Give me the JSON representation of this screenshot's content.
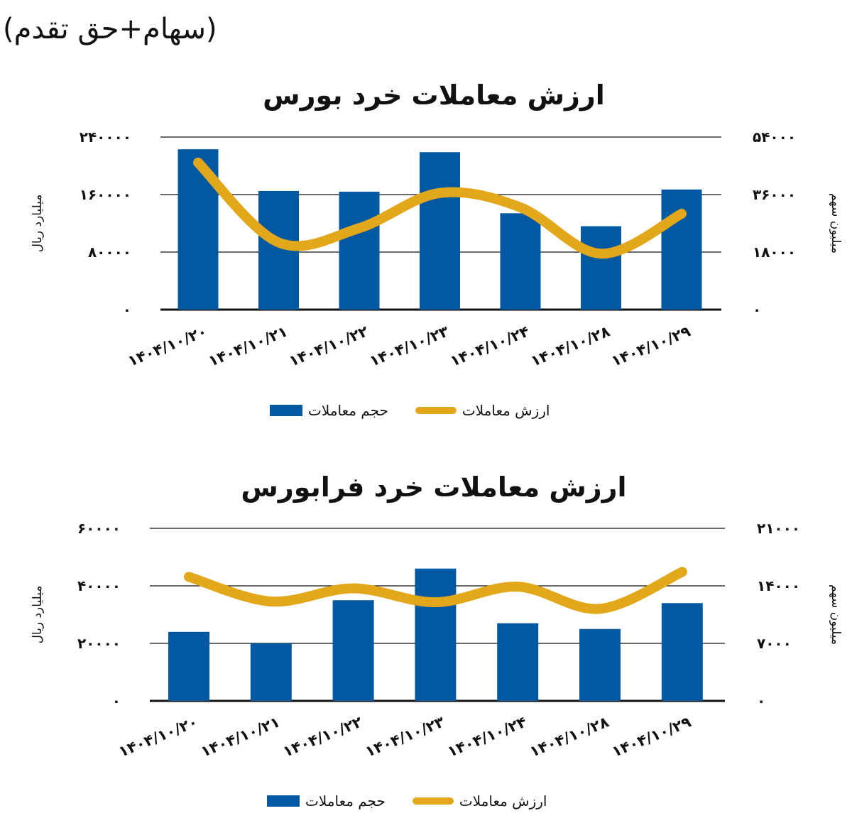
{
  "header": {
    "title": "(سهام+حق تقدم)"
  },
  "colors": {
    "bar": "#0259a1",
    "line": "#e3a71b",
    "grid": "#111111",
    "text": "#111111"
  },
  "legend": {
    "line_label": "ارزش معاملات",
    "bar_label": "حجم معاملات"
  },
  "charts": [
    {
      "title": "ارزش معاملات خرد بورس",
      "left_axis_title": "میلیارد ریال",
      "right_axis_title": "میلیون سهم",
      "left_ticks": [
        "۲۴۰۰۰۰",
        "۱۶۰۰۰۰",
        "۸۰۰۰۰",
        "۰"
      ],
      "right_ticks": [
        "۵۴۰۰۰",
        "۳۶۰۰۰",
        "۱۸۰۰۰",
        "۰"
      ],
      "x_labels": [
        "۱۴۰۴/۱۰/۲۰",
        "۱۴۰۴/۱۰/۲۱",
        "۱۴۰۴/۱۰/۲۲",
        "۱۴۰۴/۱۰/۲۳",
        "۱۴۰۴/۱۰/۲۴",
        "۱۴۰۴/۱۰/۲۸",
        "۱۴۰۴/۱۰/۲۹"
      ]
    },
    {
      "title": "ارزش معاملات خرد فرابورس",
      "left_axis_title": "میلیارد ریال",
      "right_axis_title": "میلیون سهم",
      "left_ticks": [
        "۶۰۰۰۰",
        "۴۰۰۰۰",
        "۲۰۰۰۰",
        "۰"
      ],
      "right_ticks": [
        "۲۱۰۰۰",
        "۱۴۰۰۰",
        "۷۰۰۰",
        "۰"
      ],
      "x_labels": [
        "۱۴۰۴/۱۰/۲۰",
        "۱۴۰۴/۱۰/۲۱",
        "۱۴۰۴/۱۰/۲۲",
        "۱۴۰۴/۱۰/۲۳",
        "۱۴۰۴/۱۰/۲۴",
        "۱۴۰۴/۱۰/۲۸",
        "۱۴۰۴/۱۰/۲۹"
      ]
    }
  ],
  "chart_data": [
    {
      "type": "bar",
      "title": "ارزش معاملات خرد بورس",
      "categories": [
        "1404/10/20",
        "1404/10/21",
        "1404/10/22",
        "1404/10/23",
        "1404/10/24",
        "1404/10/28",
        "1404/10/29"
      ],
      "series": [
        {
          "name": "حجم معاملات",
          "type": "bar",
          "axis": "left",
          "values": [
            223000,
            165000,
            164000,
            219000,
            134000,
            116000,
            167000
          ]
        },
        {
          "name": "ارزش معاملات",
          "type": "line",
          "smooth": true,
          "axis": "right",
          "values": [
            46000,
            21000,
            25500,
            36500,
            32000,
            17500,
            30000
          ]
        }
      ],
      "ylabel": "میلیارد ریال",
      "ylabel_right": "میلیون سهم",
      "ylim": [
        0,
        240000
      ],
      "ylim_right": [
        0,
        54000
      ],
      "yticks": [
        0,
        80000,
        160000,
        240000
      ],
      "yticks_right": [
        0,
        18000,
        36000,
        54000
      ],
      "grid": true,
      "legend_position": "bottom"
    },
    {
      "type": "bar",
      "title": "ارزش معاملات خرد فرابورس",
      "categories": [
        "1404/10/20",
        "1404/10/21",
        "1404/10/22",
        "1404/10/23",
        "1404/10/24",
        "1404/10/28",
        "1404/10/29"
      ],
      "series": [
        {
          "name": "حجم معاملات",
          "type": "bar",
          "axis": "left",
          "values": [
            24000,
            20000,
            35000,
            46000,
            27000,
            25000,
            34000
          ]
        },
        {
          "name": "ارزش معاملات",
          "type": "line",
          "smooth": true,
          "axis": "right",
          "values": [
            15100,
            12100,
            13700,
            12000,
            13900,
            11200,
            15700
          ]
        }
      ],
      "ylabel": "میلیارد ریال",
      "ylabel_right": "میلیون سهم",
      "ylim": [
        0,
        60000
      ],
      "ylim_right": [
        0,
        21000
      ],
      "yticks": [
        0,
        20000,
        40000,
        60000
      ],
      "yticks_right": [
        0,
        7000,
        14000,
        21000
      ],
      "grid": true,
      "legend_position": "bottom"
    }
  ]
}
